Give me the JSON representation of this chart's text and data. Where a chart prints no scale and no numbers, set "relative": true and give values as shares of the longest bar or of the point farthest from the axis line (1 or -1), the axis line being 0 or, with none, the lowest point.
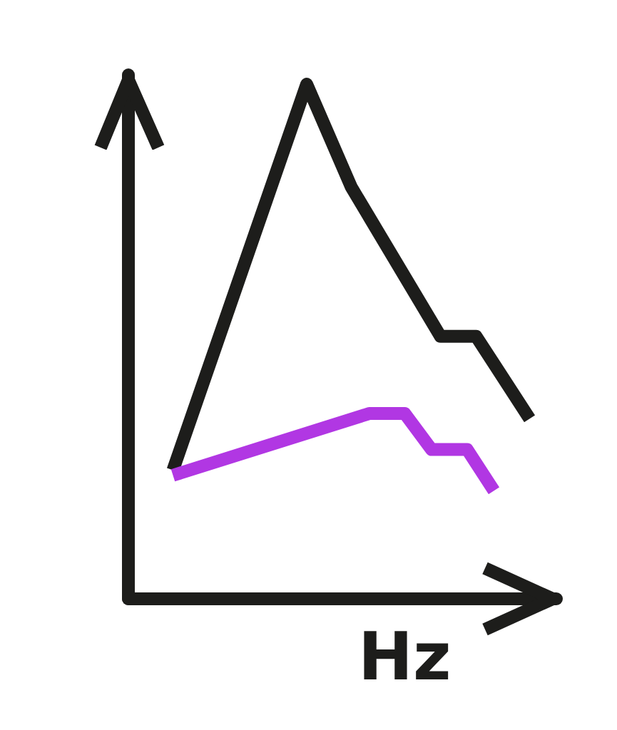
{
  "chart_data": {
    "type": "line",
    "xlabel": "Hz",
    "relative": true,
    "marker": "none",
    "line_style": "solid",
    "grid": false,
    "categories": [
      null,
      null,
      null,
      null,
      null,
      null,
      null,
      null,
      null,
      null,
      null,
      null,
      null,
      null,
      null,
      null,
      null,
      null,
      null,
      null,
      null,
      null,
      null,
      null,
      null,
      null,
      null,
      null,
      null,
      null,
      null,
      null,
      null,
      null,
      null,
      null,
      null,
      null,
      null,
      null,
      null,
      null,
      null,
      null,
      null,
      null,
      null,
      null,
      null
    ],
    "series": [
      {
        "color": "#1d1d1b",
        "values": [
          null,
          null,
          null,
          null,
          null,
          0.25,
          null,
          null,
          null,
          null,
          null,
          null,
          null,
          null,
          null,
          null,
          null,
          null,
          null,
          null,
          1,
          null,
          null,
          null,
          null,
          0.8,
          null,
          null,
          null,
          null,
          null,
          null,
          null,
          null,
          null,
          0.51,
          null,
          null,
          null,
          0.51,
          null,
          null,
          null,
          null,
          null,
          0.35,
          null,
          null,
          null
        ]
      },
      {
        "color": "#b137e3",
        "values": [
          null,
          null,
          null,
          null,
          null,
          0.24,
          null,
          null,
          null,
          null,
          null,
          null,
          null,
          null,
          null,
          null,
          null,
          null,
          null,
          null,
          null,
          null,
          null,
          null,
          null,
          null,
          null,
          0.36,
          null,
          null,
          null,
          0.36,
          null,
          null,
          0.29,
          null,
          null,
          null,
          0.29,
          null,
          null,
          0.21,
          null,
          null,
          null,
          null,
          null,
          null,
          null
        ]
      }
    ]
  }
}
